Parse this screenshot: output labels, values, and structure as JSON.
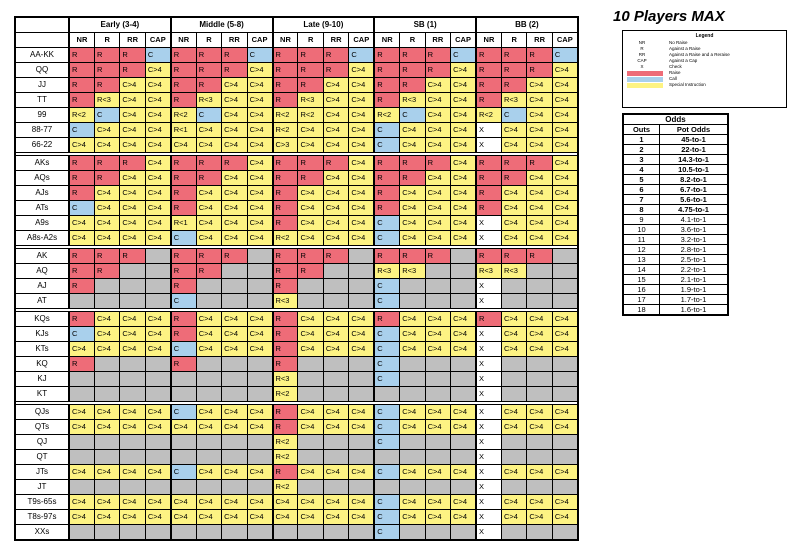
{
  "title": "10 Players MAX",
  "groups": [
    "Early (3-4)",
    "Middle (5-8)",
    "Late (9-10)",
    "SB (1)",
    "BB (2)"
  ],
  "subheads": [
    "NR",
    "R",
    "RR",
    "CAP"
  ],
  "rows": [
    {
      "hand": "AA-KK",
      "cells": [
        "R",
        "R",
        "R",
        "C",
        "R",
        "R",
        "R",
        "C",
        "R",
        "R",
        "R",
        "C",
        "R",
        "R",
        "R",
        "C",
        "R",
        "R",
        "R",
        "C"
      ]
    },
    {
      "hand": "QQ",
      "cells": [
        "R",
        "R",
        "R",
        "C>4",
        "R",
        "R",
        "R",
        "C>4",
        "R",
        "R",
        "R",
        "C>4",
        "R",
        "R",
        "R",
        "C>4",
        "R",
        "R",
        "R",
        "C>4"
      ]
    },
    {
      "hand": "JJ",
      "cells": [
        "R",
        "R",
        "C>4",
        "C>4",
        "R",
        "R",
        "C>4",
        "C>4",
        "R",
        "R",
        "C>4",
        "C>4",
        "R",
        "R",
        "C>4",
        "C>4",
        "R",
        "R",
        "C>4",
        "C>4"
      ]
    },
    {
      "hand": "TT",
      "cells": [
        "R",
        "R<3",
        "C>4",
        "C>4",
        "R",
        "R<3",
        "C>4",
        "C>4",
        "R",
        "R<3",
        "C>4",
        "C>4",
        "R",
        "R<3",
        "C>4",
        "C>4",
        "R",
        "R<3",
        "C>4",
        "C>4"
      ]
    },
    {
      "hand": "99",
      "cells": [
        "R<2",
        "C",
        "C>4",
        "C>4",
        "R<2",
        "C",
        "C>4",
        "C>4",
        "R<2",
        "R<2",
        "C>4",
        "C>4",
        "R<2",
        "C",
        "C>4",
        "C>4",
        "R<2",
        "C",
        "C>4",
        "C>4"
      ]
    },
    {
      "hand": "88-77",
      "cells": [
        "C",
        "C>4",
        "C>4",
        "C>4",
        "R<1",
        "C>4",
        "C>4",
        "C>4",
        "R<2",
        "C>4",
        "C>4",
        "C>4",
        "C",
        "C>4",
        "C>4",
        "C>4",
        "X",
        "C>4",
        "C>4",
        "C>4"
      ]
    },
    {
      "hand": "66-22",
      "cells": [
        "C>4",
        "C>4",
        "C>4",
        "C>4",
        "C>4",
        "C>4",
        "C>4",
        "C>4",
        "C>3",
        "C>4",
        "C>4",
        "C>4",
        "C",
        "C>4",
        "C>4",
        "C>4",
        "X",
        "C>4",
        "C>4",
        "C>4"
      ]
    },
    {
      "gap": true
    },
    {
      "hand": "AKs",
      "cells": [
        "R",
        "R",
        "R",
        "C>4",
        "R",
        "R",
        "R",
        "C>4",
        "R",
        "R",
        "R",
        "C>4",
        "R",
        "R",
        "R",
        "C>4",
        "R",
        "R",
        "R",
        "C>4"
      ]
    },
    {
      "hand": "AQs",
      "cells": [
        "R",
        "R",
        "C>4",
        "C>4",
        "R",
        "R",
        "C>4",
        "C>4",
        "R",
        "R",
        "C>4",
        "C>4",
        "R",
        "R",
        "C>4",
        "C>4",
        "R",
        "R",
        "C>4",
        "C>4"
      ]
    },
    {
      "hand": "AJs",
      "cells": [
        "R",
        "C>4",
        "C>4",
        "C>4",
        "R",
        "C>4",
        "C>4",
        "C>4",
        "R",
        "C>4",
        "C>4",
        "C>4",
        "R",
        "C>4",
        "C>4",
        "C>4",
        "R",
        "C>4",
        "C>4",
        "C>4"
      ]
    },
    {
      "hand": "ATs",
      "cells": [
        "C",
        "C>4",
        "C>4",
        "C>4",
        "R",
        "C>4",
        "C>4",
        "C>4",
        "R",
        "C>4",
        "C>4",
        "C>4",
        "R",
        "C>4",
        "C>4",
        "C>4",
        "R",
        "C>4",
        "C>4",
        "C>4"
      ]
    },
    {
      "hand": "A9s",
      "cells": [
        "C>4",
        "C>4",
        "C>4",
        "C>4",
        "R<1",
        "C>4",
        "C>4",
        "C>4",
        "R",
        "C>4",
        "C>4",
        "C>4",
        "C",
        "C>4",
        "C>4",
        "C>4",
        "X",
        "C>4",
        "C>4",
        "C>4"
      ]
    },
    {
      "hand": "A8s-A2s",
      "cells": [
        "C>4",
        "C>4",
        "C>4",
        "C>4",
        "C",
        "C>4",
        "C>4",
        "C>4",
        "R<2",
        "C>4",
        "C>4",
        "C>4",
        "C",
        "C>4",
        "C>4",
        "C>4",
        "X",
        "C>4",
        "C>4",
        "C>4"
      ]
    },
    {
      "gap": true
    },
    {
      "hand": "AK",
      "cells": [
        "R",
        "R",
        "R",
        "",
        "R",
        "R",
        "R",
        "",
        "R",
        "R",
        "R",
        "",
        "R",
        "R",
        "R",
        "",
        "R",
        "R",
        "R",
        ""
      ]
    },
    {
      "hand": "AQ",
      "cells": [
        "R",
        "R",
        "",
        "",
        "R",
        "R",
        "",
        "",
        "R",
        "R",
        "",
        "",
        "R<3",
        "R<3",
        "",
        "",
        "R<3",
        "R<3",
        "",
        ""
      ]
    },
    {
      "hand": "AJ",
      "cells": [
        "R",
        "",
        "",
        "",
        "R",
        "",
        "",
        "",
        "R",
        "",
        "",
        "",
        "C",
        "",
        "",
        "",
        "X",
        "",
        "",
        ""
      ]
    },
    {
      "hand": "AT",
      "cells": [
        "",
        "",
        "",
        "",
        "C",
        "",
        "",
        "",
        "R<3",
        "",
        "",
        "",
        "C",
        "",
        "",
        "",
        "X",
        "",
        "",
        ""
      ]
    },
    {
      "gap": true
    },
    {
      "hand": "KQs",
      "cells": [
        "R",
        "C>4",
        "C>4",
        "C>4",
        "R",
        "C>4",
        "C>4",
        "C>4",
        "R",
        "C>4",
        "C>4",
        "C>4",
        "R",
        "C>4",
        "C>4",
        "C>4",
        "R",
        "C>4",
        "C>4",
        "C>4"
      ]
    },
    {
      "hand": "KJs",
      "cells": [
        "C",
        "C>4",
        "C>4",
        "C>4",
        "R",
        "C>4",
        "C>4",
        "C>4",
        "R",
        "C>4",
        "C>4",
        "C>4",
        "C",
        "C>4",
        "C>4",
        "C>4",
        "X",
        "C>4",
        "C>4",
        "C>4"
      ]
    },
    {
      "hand": "KTs",
      "cells": [
        "C>4",
        "C>4",
        "C>4",
        "C>4",
        "C",
        "C>4",
        "C>4",
        "C>4",
        "R",
        "C>4",
        "C>4",
        "C>4",
        "C",
        "C>4",
        "C>4",
        "C>4",
        "X",
        "C>4",
        "C>4",
        "C>4"
      ]
    },
    {
      "hand": "KQ",
      "cells": [
        "R",
        "",
        "",
        "",
        "R",
        "",
        "",
        "",
        "R",
        "",
        "",
        "",
        "C",
        "",
        "",
        "",
        "X",
        "",
        "",
        ""
      ]
    },
    {
      "hand": "KJ",
      "cells": [
        "",
        "",
        "",
        "",
        "",
        "",
        "",
        "",
        "R<3",
        "",
        "",
        "",
        "C",
        "",
        "",
        "",
        "X",
        "",
        "",
        ""
      ]
    },
    {
      "hand": "KT",
      "cells": [
        "",
        "",
        "",
        "",
        "",
        "",
        "",
        "",
        "R<2",
        "",
        "",
        "",
        "",
        "",
        "",
        "",
        "X",
        "",
        "",
        ""
      ]
    },
    {
      "gap": true
    },
    {
      "hand": "QJs",
      "cells": [
        "C>4",
        "C>4",
        "C>4",
        "C>4",
        "C",
        "C>4",
        "C>4",
        "C>4",
        "R",
        "C>4",
        "C>4",
        "C>4",
        "C",
        "C>4",
        "C>4",
        "C>4",
        "X",
        "C>4",
        "C>4",
        "C>4"
      ]
    },
    {
      "hand": "QTs",
      "cells": [
        "C>4",
        "C>4",
        "C>4",
        "C>4",
        "C>4",
        "C>4",
        "C>4",
        "C>4",
        "R",
        "C>4",
        "C>4",
        "C>4",
        "C",
        "C>4",
        "C>4",
        "C>4",
        "X",
        "C>4",
        "C>4",
        "C>4"
      ]
    },
    {
      "hand": "QJ",
      "cells": [
        "",
        "",
        "",
        "",
        "",
        "",
        "",
        "",
        "R<2",
        "",
        "",
        "",
        "C",
        "",
        "",
        "",
        "X",
        "",
        "",
        ""
      ]
    },
    {
      "hand": "QT",
      "cells": [
        "",
        "",
        "",
        "",
        "",
        "",
        "",
        "",
        "R<2",
        "",
        "",
        "",
        "",
        "",
        "",
        "",
        "X",
        "",
        "",
        ""
      ]
    },
    {
      "hand": "JTs",
      "cells": [
        "C>4",
        "C>4",
        "C>4",
        "C>4",
        "C",
        "C>4",
        "C>4",
        "C>4",
        "R",
        "C>4",
        "C>4",
        "C>4",
        "C",
        "C>4",
        "C>4",
        "C>4",
        "X",
        "C>4",
        "C>4",
        "C>4"
      ]
    },
    {
      "hand": "JT",
      "cells": [
        "",
        "",
        "",
        "",
        "",
        "",
        "",
        "",
        "R<2",
        "",
        "",
        "",
        "",
        "",
        "",
        "",
        "X",
        "",
        "",
        ""
      ]
    },
    {
      "hand": "T9s-65s",
      "cells": [
        "C>4",
        "C>4",
        "C>4",
        "C>4",
        "C>4",
        "C>4",
        "C>4",
        "C>4",
        "C>4",
        "C>4",
        "C>4",
        "C>4",
        "C",
        "C>4",
        "C>4",
        "C>4",
        "X",
        "C>4",
        "C>4",
        "C>4"
      ]
    },
    {
      "hand": "T8s-97s",
      "cells": [
        "C>4",
        "C>4",
        "C>4",
        "C>4",
        "C>4",
        "C>4",
        "C>4",
        "C>4",
        "C>4",
        "C>4",
        "C>4",
        "C>4",
        "C",
        "C>4",
        "C>4",
        "C>4",
        "X",
        "C>4",
        "C>4",
        "C>4"
      ]
    },
    {
      "hand": "XXs",
      "cells": [
        "",
        "",
        "",
        "",
        "",
        "",
        "",
        "",
        "",
        "",
        "",
        "",
        "C",
        "",
        "",
        "",
        "X",
        "",
        "",
        ""
      ]
    }
  ],
  "legend": {
    "title": "Legend",
    "items": [
      {
        "key": "NR",
        "desc": "No Raise"
      },
      {
        "key": "R",
        "desc": "Against a Raise"
      },
      {
        "key": "RR",
        "desc": "Against a Raise and a Reraise"
      },
      {
        "key": "CAP",
        "desc": "Against a Cap"
      },
      {
        "key": "X",
        "desc": "Check"
      },
      {
        "swatch": "#ee6c78",
        "desc": "Raise"
      },
      {
        "swatch": "#a9d0ec",
        "desc": "Call"
      },
      {
        "swatch": "#fdf383",
        "desc": "Special Instruction"
      }
    ]
  },
  "odds": {
    "title": "Odds",
    "head": [
      "Outs",
      "Pot Odds"
    ],
    "rows": [
      [
        "1",
        "45-to-1"
      ],
      [
        "2",
        "22-to-1"
      ],
      [
        "3",
        "14.3-to-1"
      ],
      [
        "4",
        "10.5-to-1"
      ],
      [
        "5",
        "8.2-to-1"
      ],
      [
        "6",
        "6.7-to-1"
      ],
      [
        "7",
        "5.6-to-1"
      ],
      [
        "8",
        "4.75-to-1"
      ],
      [
        "9",
        "4.1-to-1"
      ],
      [
        "10",
        "3.6-to-1"
      ],
      [
        "11",
        "3.2-to-1"
      ],
      [
        "12",
        "2.8-to-1"
      ],
      [
        "13",
        "2.5-to-1"
      ],
      [
        "14",
        "2.2-to-1"
      ],
      [
        "15",
        "2.1-to-1"
      ],
      [
        "16",
        "1.9-to-1"
      ],
      [
        "17",
        "1.7-to-1"
      ],
      [
        "18",
        "1.6-to-1"
      ]
    ],
    "bold_rows": 8
  },
  "colors": {
    "raise": "#ee6c78",
    "call": "#a9d0ec",
    "special": "#fdf383",
    "fold": "#bfbfbf"
  }
}
